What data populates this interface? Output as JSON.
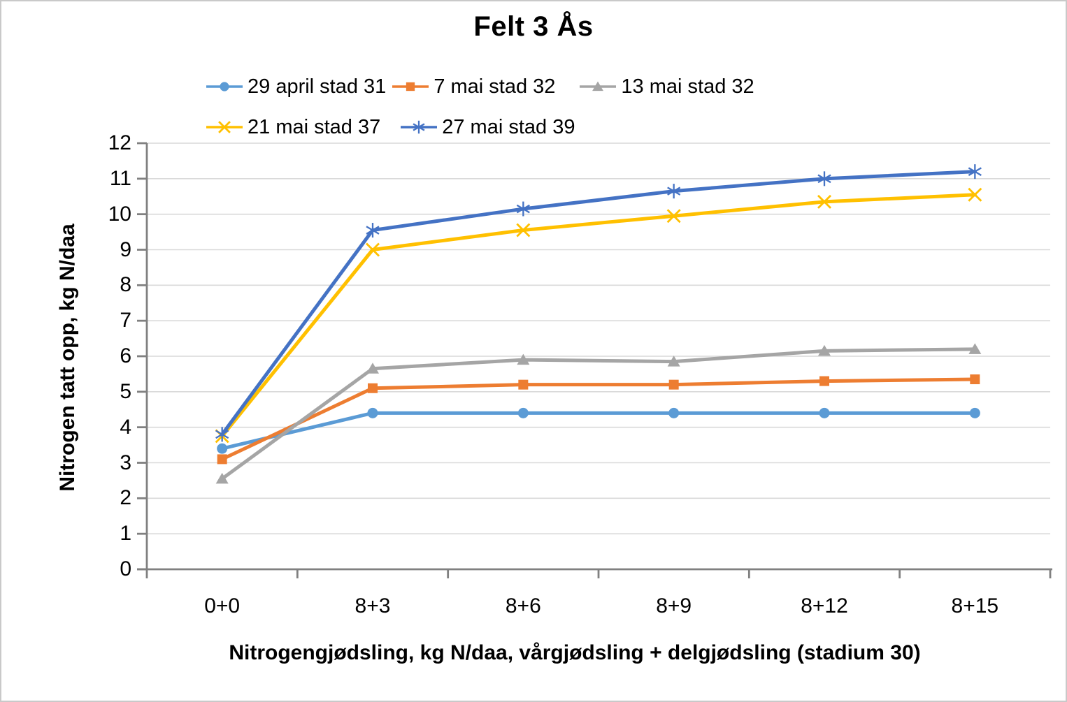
{
  "chart_data": {
    "type": "line",
    "title": "Felt 3 Ås",
    "xlabel": "Nitrogengjødsling, kg N/daa, vårgjødsling + delgjødsling (stadium 30)",
    "ylabel": "Nitrogen tatt opp, kg N/daa",
    "categories": [
      "0+0",
      "8+3",
      "8+6",
      "8+9",
      "8+12",
      "8+15"
    ],
    "y_tick_labels": [
      "0",
      "1",
      "2",
      "3",
      "4",
      "5",
      "6",
      "7",
      "8",
      "9",
      "10",
      "11",
      "12"
    ],
    "ylim": [
      0,
      12
    ],
    "grid": true,
    "legend_position": "top",
    "axis_color": "#808080",
    "gridline_color": "#D9D9D9",
    "series": [
      {
        "name": "29 april stad 31",
        "marker": "circle",
        "color": "#5B9BD5",
        "values": [
          3.4,
          4.4,
          4.4,
          4.4,
          4.4,
          4.4
        ]
      },
      {
        "name": "7 mai stad 32",
        "marker": "square",
        "color": "#ED7D31",
        "values": [
          3.1,
          5.1,
          5.2,
          5.2,
          5.3,
          5.35
        ]
      },
      {
        "name": "13 mai stad 32",
        "marker": "triangle",
        "color": "#A5A5A5",
        "values": [
          2.55,
          5.65,
          5.9,
          5.85,
          6.15,
          6.2
        ]
      },
      {
        "name": "21 mai stad 37",
        "marker": "x",
        "color": "#FFC000",
        "values": [
          3.75,
          9.0,
          9.55,
          9.95,
          10.35,
          10.55
        ]
      },
      {
        "name": "27 mai stad 39",
        "marker": "asterisk",
        "color": "#4472C4",
        "values": [
          3.8,
          9.55,
          10.15,
          10.65,
          11.0,
          11.2
        ]
      }
    ]
  }
}
